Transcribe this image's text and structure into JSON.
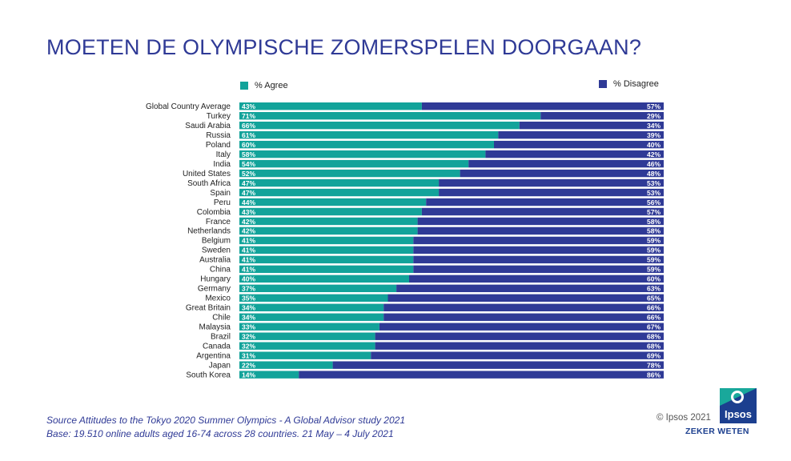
{
  "title": "MOETEN DE OLYMPISCHE ZOMERSPELEN DOORGAAN?",
  "legend": {
    "agree_label": "% Agree",
    "disagree_label": "% Disagree"
  },
  "colors": {
    "agree": "#12a39a",
    "disagree": "#2f3a96",
    "title": "#2f3a96"
  },
  "chart_data": {
    "type": "bar",
    "orientation": "horizontal",
    "stacked": true,
    "title": "MOETEN DE OLYMPISCHE ZOMERSPELEN DOORGAAN?",
    "categories": [
      "Global Country Average",
      "Turkey",
      "Saudi Arabia",
      "Russia",
      "Poland",
      "Italy",
      "India",
      "United States",
      "South Africa",
      "Spain",
      "Peru",
      "Colombia",
      "France",
      "Netherlands",
      "Belgium",
      "Sweden",
      "Australia",
      "China",
      "Hungary",
      "Germany",
      "Mexico",
      "Great Britain",
      "Chile",
      "Malaysia",
      "Brazil",
      "Canada",
      "Argentina",
      "Japan",
      "South Korea"
    ],
    "series": [
      {
        "name": "% Agree",
        "values": [
          43,
          71,
          66,
          61,
          60,
          58,
          54,
          52,
          47,
          47,
          44,
          43,
          42,
          42,
          41,
          41,
          41,
          41,
          40,
          37,
          35,
          34,
          34,
          33,
          32,
          32,
          31,
          22,
          14
        ]
      },
      {
        "name": "% Disagree",
        "values": [
          57,
          29,
          34,
          39,
          40,
          42,
          46,
          48,
          53,
          53,
          56,
          57,
          58,
          58,
          59,
          59,
          59,
          59,
          60,
          63,
          65,
          66,
          66,
          67,
          68,
          68,
          69,
          78,
          86
        ]
      }
    ],
    "xlim": [
      0,
      100
    ],
    "value_suffix": "%",
    "legend_position": "top"
  },
  "footer": {
    "source": "Source Attitudes to the Tokyo 2020 Summer Olympics - A Global Advisor study 2021",
    "base": "Base: 19.510 online adults aged 16-74 across 28 countries. 21 May – 4 July 2021",
    "copyright": "© Ipsos 2021",
    "logo_text": "Ipsos",
    "tagline": "ZEKER WETEN"
  }
}
